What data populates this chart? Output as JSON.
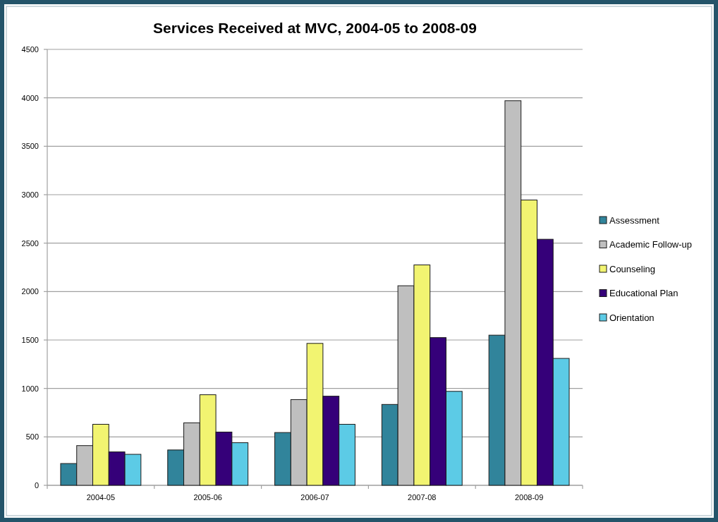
{
  "chart_data": {
    "type": "bar",
    "title": "Services Received at MVC, 2004-05 to 2008-09",
    "categories": [
      "2004-05",
      "2005-06",
      "2006-07",
      "2007-08",
      "2008-09"
    ],
    "series": [
      {
        "name": "Assessment",
        "color": "#31849b",
        "values": [
          225,
          365,
          545,
          835,
          1550
        ]
      },
      {
        "name": "Academic Follow-up",
        "color": "#bfbfbf",
        "values": [
          410,
          645,
          885,
          2060,
          3970
        ]
      },
      {
        "name": "Counseling",
        "color": "#f2f471",
        "values": [
          630,
          935,
          1465,
          2275,
          2945
        ]
      },
      {
        "name": "Educational Plan",
        "color": "#350079",
        "values": [
          345,
          550,
          920,
          1525,
          2540
        ]
      },
      {
        "name": "Orientation",
        "color": "#5ccbe6",
        "values": [
          320,
          440,
          630,
          970,
          1310
        ]
      }
    ],
    "ylim": [
      0,
      4500
    ],
    "yticks": [
      0,
      500,
      1000,
      1500,
      2000,
      2500,
      3000,
      3500,
      4000,
      4500
    ],
    "grid": "y",
    "legend": "right"
  }
}
